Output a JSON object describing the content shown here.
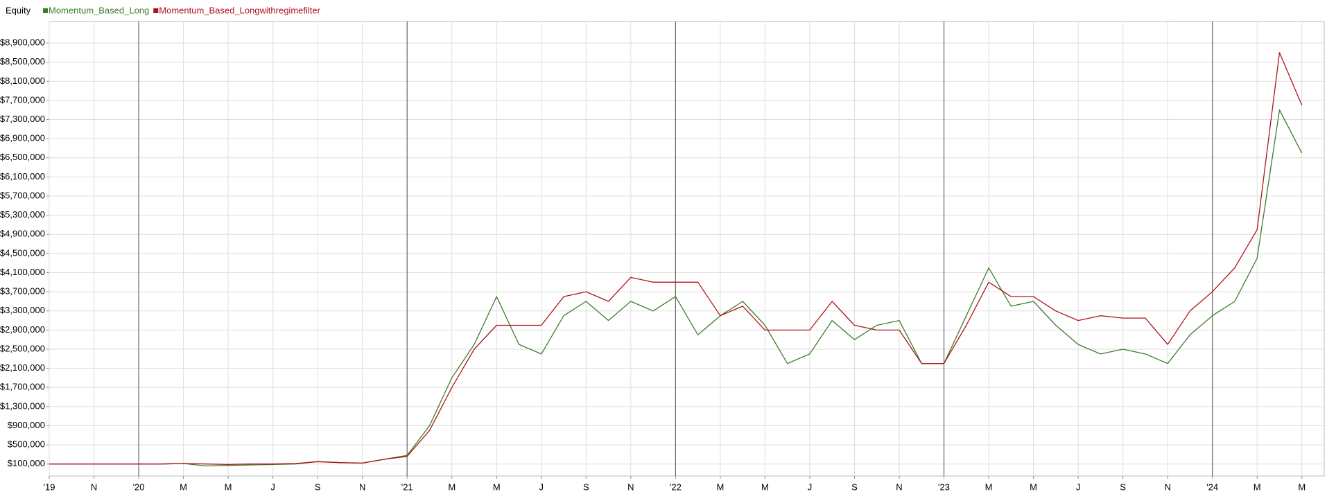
{
  "chart_data": {
    "type": "line",
    "title": "Equity",
    "x": [
      "2019-09",
      "2019-10",
      "2019-11",
      "2019-12",
      "2020-01",
      "2020-02",
      "2020-03",
      "2020-04",
      "2020-05",
      "2020-06",
      "2020-07",
      "2020-08",
      "2020-09",
      "2020-10",
      "2020-11",
      "2020-12",
      "2021-01",
      "2021-02",
      "2021-03",
      "2021-04",
      "2021-05",
      "2021-06",
      "2021-07",
      "2021-08",
      "2021-09",
      "2021-10",
      "2021-11",
      "2021-12",
      "2022-01",
      "2022-02",
      "2022-03",
      "2022-04",
      "2022-05",
      "2022-06",
      "2022-07",
      "2022-08",
      "2022-09",
      "2022-10",
      "2022-11",
      "2022-12",
      "2023-01",
      "2023-02",
      "2023-03",
      "2023-04",
      "2023-05",
      "2023-06",
      "2023-07",
      "2023-08",
      "2023-09",
      "2023-10",
      "2023-11",
      "2023-12",
      "2024-01",
      "2024-02",
      "2024-03",
      "2024-04",
      "2024-05"
    ],
    "series": [
      {
        "name": "Momentum_Based_Long",
        "color": "#3a7d2a",
        "values": [
          100000,
          100000,
          100000,
          100000,
          100000,
          100000,
          110000,
          60000,
          70000,
          80000,
          90000,
          100000,
          150000,
          130000,
          120000,
          200000,
          280000,
          900000,
          1900000,
          2600000,
          3600000,
          2600000,
          2400000,
          3200000,
          3500000,
          3100000,
          3500000,
          3300000,
          3600000,
          2800000,
          3200000,
          3500000,
          3000000,
          2200000,
          2400000,
          3100000,
          2700000,
          3000000,
          3100000,
          2200000,
          2200000,
          3200000,
          4200000,
          3400000,
          3500000,
          3000000,
          2600000,
          2400000,
          2500000,
          2400000,
          2200000,
          2800000,
          3200000,
          3500000,
          4400000,
          7500000,
          6600000
        ]
      },
      {
        "name": "Momentum_Based_Longwithregimefilter",
        "color": "#b0121b",
        "values": [
          100000,
          100000,
          100000,
          100000,
          100000,
          100000,
          110000,
          100000,
          90000,
          100000,
          100000,
          110000,
          150000,
          130000,
          120000,
          200000,
          260000,
          800000,
          1700000,
          2500000,
          3000000,
          3000000,
          3000000,
          3600000,
          3700000,
          3500000,
          4000000,
          3900000,
          3900000,
          3900000,
          3200000,
          3400000,
          2900000,
          2900000,
          2900000,
          3500000,
          3000000,
          2900000,
          2900000,
          2200000,
          2200000,
          3000000,
          3900000,
          3600000,
          3600000,
          3300000,
          3100000,
          3200000,
          3150000,
          3150000,
          2600000,
          3300000,
          3700000,
          4200000,
          5000000,
          8700000,
          7600000
        ]
      }
    ],
    "xlim": [
      "2019-09",
      "2024-06"
    ],
    "xticks": [
      {
        "value": "2019-09",
        "label": "'19"
      },
      {
        "value": "2019-11",
        "label": "N"
      },
      {
        "value": "2020-01",
        "label": "'20"
      },
      {
        "value": "2020-03",
        "label": "M"
      },
      {
        "value": "2020-05",
        "label": "M"
      },
      {
        "value": "2020-07",
        "label": "J"
      },
      {
        "value": "2020-09",
        "label": "S"
      },
      {
        "value": "2020-11",
        "label": "N"
      },
      {
        "value": "2021-01",
        "label": "'21"
      },
      {
        "value": "2021-03",
        "label": "M"
      },
      {
        "value": "2021-05",
        "label": "M"
      },
      {
        "value": "2021-07",
        "label": "J"
      },
      {
        "value": "2021-09",
        "label": "S"
      },
      {
        "value": "2021-11",
        "label": "N"
      },
      {
        "value": "2022-01",
        "label": "'22"
      },
      {
        "value": "2022-03",
        "label": "M"
      },
      {
        "value": "2022-05",
        "label": "M"
      },
      {
        "value": "2022-07",
        "label": "J"
      },
      {
        "value": "2022-09",
        "label": "S"
      },
      {
        "value": "2022-11",
        "label": "N"
      },
      {
        "value": "2023-01",
        "label": "'23"
      },
      {
        "value": "2023-03",
        "label": "M"
      },
      {
        "value": "2023-05",
        "label": "M"
      },
      {
        "value": "2023-07",
        "label": "J"
      },
      {
        "value": "2023-09",
        "label": "S"
      },
      {
        "value": "2023-11",
        "label": "N"
      },
      {
        "value": "2024-01",
        "label": "'24"
      },
      {
        "value": "2024-03",
        "label": "M"
      },
      {
        "value": "2024-05",
        "label": "M"
      }
    ],
    "ylim": [
      -150000,
      9350000
    ],
    "yticks": [
      {
        "value": 100000,
        "label": "$100,000"
      },
      {
        "value": 500000,
        "label": "$500,000"
      },
      {
        "value": 900000,
        "label": "$900,000"
      },
      {
        "value": 1300000,
        "label": "$1,300,000"
      },
      {
        "value": 1700000,
        "label": "$1,700,000"
      },
      {
        "value": 2100000,
        "label": "$2,100,000"
      },
      {
        "value": 2500000,
        "label": "$2,500,000"
      },
      {
        "value": 2900000,
        "label": "$2,900,000"
      },
      {
        "value": 3300000,
        "label": "$3,300,000"
      },
      {
        "value": 3700000,
        "label": "$3,700,000"
      },
      {
        "value": 4100000,
        "label": "$4,100,000"
      },
      {
        "value": 4500000,
        "label": "$4,500,000"
      },
      {
        "value": 4900000,
        "label": "$4,900,000"
      },
      {
        "value": 5300000,
        "label": "$5,300,000"
      },
      {
        "value": 5700000,
        "label": "$5,700,000"
      },
      {
        "value": 6100000,
        "label": "$6,100,000"
      },
      {
        "value": 6500000,
        "label": "$6,500,000"
      },
      {
        "value": 6900000,
        "label": "$6,900,000"
      },
      {
        "value": 7300000,
        "label": "$7,300,000"
      },
      {
        "value": 7700000,
        "label": "$7,700,000"
      },
      {
        "value": 8100000,
        "label": "$8,100,000"
      },
      {
        "value": 8500000,
        "label": "$8,500,000"
      },
      {
        "value": 8900000,
        "label": "$8,900,000"
      }
    ],
    "grid": true,
    "legend": "top-left"
  }
}
